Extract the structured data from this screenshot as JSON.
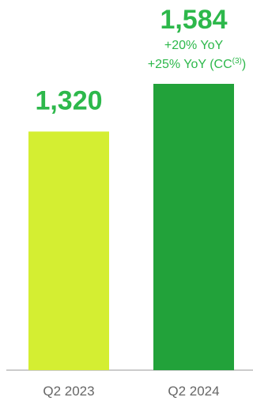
{
  "chart_data": {
    "type": "bar",
    "categories": [
      "Q2 2023",
      "Q2 2024"
    ],
    "values": [
      1320,
      1584
    ],
    "value_labels": [
      "1,320",
      "1,584"
    ],
    "annotations": {
      "1": [
        "+20% YoY",
        "+25% YoY (CC",
        "(3)",
        ")"
      ]
    },
    "ylim": [
      0,
      1584
    ],
    "grid": false,
    "colors": {
      "bars": [
        "#D4EE32",
        "#22A23A"
      ],
      "value_label": "#2DB84B",
      "annotation": "#2DB84B",
      "axis_labels": "#666666",
      "baseline": "#BBBBBB"
    }
  }
}
